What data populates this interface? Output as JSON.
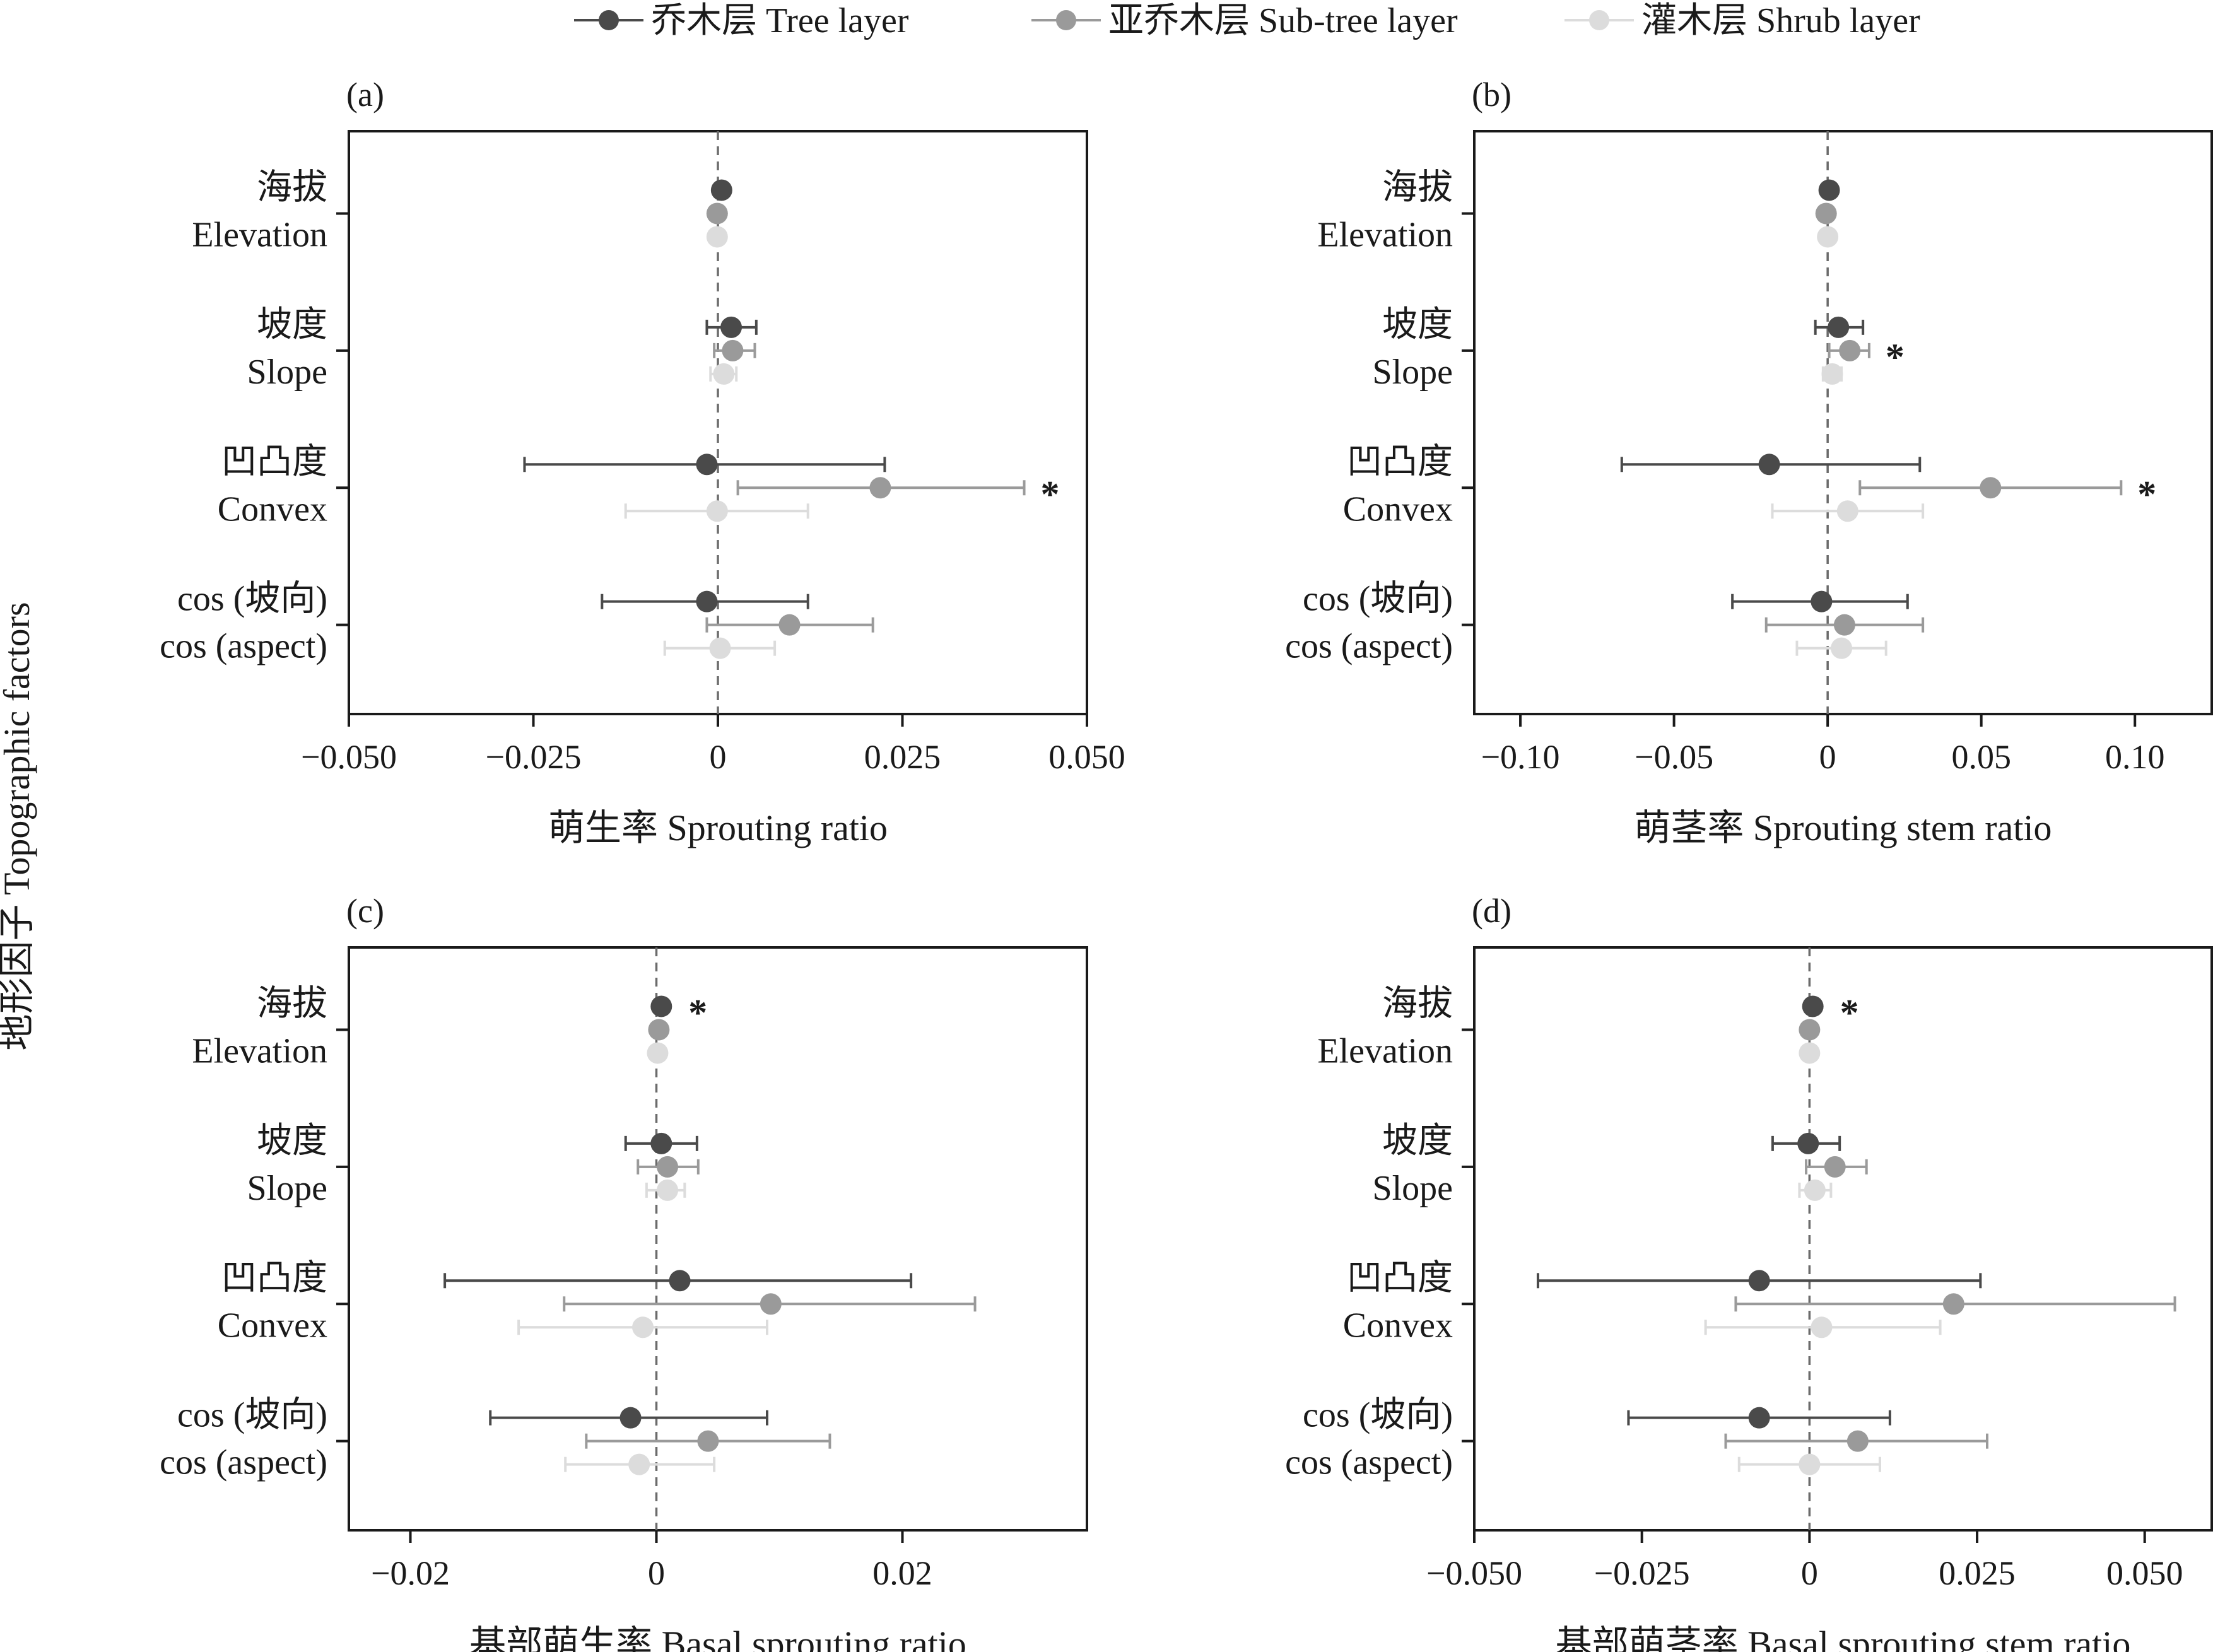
{
  "legend": [
    {
      "label": "乔木层 Tree layer",
      "color": "#4a4a4a"
    },
    {
      "label": "亚乔木层 Sub-tree layer",
      "color": "#9a9a9a"
    },
    {
      "label": "灌木层 Shrub layer",
      "color": "#dcdcdc"
    }
  ],
  "y_axis_label": "地形因子 Topographic factors",
  "categories": [
    {
      "cn": "海拔",
      "en": "Elevation"
    },
    {
      "cn": "坡度",
      "en": "Slope"
    },
    {
      "cn": "凹凸度",
      "en": "Convex"
    },
    {
      "cn": "cos (坡向)",
      "en": "cos (aspect)"
    }
  ],
  "chart_data": [
    {
      "type": "scatter",
      "panel": "(a)",
      "xlabel": "萌生率 Sprouting ratio",
      "xlim": [
        -0.05,
        0.05
      ],
      "xticks": [
        -0.05,
        -0.025,
        0,
        0.025,
        0.05
      ],
      "xtick_labels": [
        "−0.050",
        "−0.025",
        "0",
        "0.025",
        "0.050"
      ],
      "series": [
        {
          "name": "乔木层 Tree layer",
          "color": "#4a4a4a",
          "values": [
            0.0005,
            0.0018,
            -0.0015,
            -0.0015
          ],
          "lower": [
            0.0005,
            -0.0015,
            -0.0262,
            -0.0157
          ],
          "upper": [
            0.0005,
            0.0052,
            0.0226,
            0.0122
          ],
          "significant": [
            false,
            false,
            false,
            false
          ]
        },
        {
          "name": "亚乔木层 Sub-tree layer",
          "color": "#9a9a9a",
          "values": [
            -0.0001,
            0.002,
            0.022,
            0.0097
          ],
          "lower": [
            -0.0001,
            -0.0005,
            0.0027,
            -0.0015
          ],
          "upper": [
            -0.0001,
            0.005,
            0.0415,
            0.021
          ],
          "significant": [
            false,
            false,
            true,
            false
          ]
        },
        {
          "name": "灌木层 Shrub layer",
          "color": "#dcdcdc",
          "values": [
            -0.0001,
            0.0008,
            -0.0001,
            0.0003
          ],
          "lower": [
            -0.0001,
            -0.001,
            -0.0125,
            -0.0072
          ],
          "upper": [
            -0.0001,
            0.0025,
            0.0122,
            0.0077
          ],
          "significant": [
            false,
            false,
            false,
            false
          ]
        }
      ]
    },
    {
      "type": "scatter",
      "panel": "(b)",
      "xlabel": "萌茎率 Sprouting stem ratio",
      "xlim": [
        -0.115,
        0.125
      ],
      "xticks": [
        -0.1,
        -0.05,
        0,
        0.05,
        0.1
      ],
      "xtick_labels": [
        "−0.10",
        "−0.05",
        "0",
        "0.05",
        "0.10"
      ],
      "series": [
        {
          "name": "乔木层 Tree layer",
          "color": "#4a4a4a",
          "values": [
            0.0005,
            0.0035,
            -0.019,
            -0.002
          ],
          "lower": [
            0.0005,
            -0.004,
            -0.067,
            -0.031
          ],
          "upper": [
            0.0005,
            0.0115,
            0.03,
            0.026
          ],
          "significant": [
            false,
            false,
            false,
            false
          ]
        },
        {
          "name": "亚乔木层 Sub-tree layer",
          "color": "#9a9a9a",
          "values": [
            -0.0005,
            0.0072,
            0.053,
            0.0055
          ],
          "lower": [
            -0.0005,
            0.0005,
            0.0105,
            -0.02
          ],
          "upper": [
            -0.0005,
            0.0135,
            0.0955,
            0.031
          ],
          "significant": [
            false,
            true,
            true,
            false
          ]
        },
        {
          "name": "灌木层 Shrub layer",
          "color": "#dcdcdc",
          "values": [
            0.0,
            0.0015,
            0.0065,
            0.0045
          ],
          "lower": [
            0.0,
            -0.0015,
            -0.018,
            -0.01
          ],
          "upper": [
            0.0,
            0.0045,
            0.031,
            0.019
          ],
          "significant": [
            false,
            false,
            false,
            false
          ]
        }
      ]
    },
    {
      "type": "scatter",
      "panel": "(c)",
      "xlabel": "基部萌生率 Basal sprouting ratio",
      "xlim": [
        -0.025,
        0.035
      ],
      "xticks": [
        -0.02,
        0,
        0.02
      ],
      "xtick_labels": [
        "−0.02",
        "0",
        "0.02"
      ],
      "series": [
        {
          "name": "乔木层 Tree layer",
          "color": "#4a4a4a",
          "values": [
            0.0004,
            0.0004,
            0.0019,
            -0.0021
          ],
          "lower": [
            0.0004,
            -0.0025,
            -0.0172,
            -0.0135
          ],
          "upper": [
            0.0004,
            0.0033,
            0.0207,
            0.009
          ],
          "significant": [
            true,
            false,
            false,
            false
          ]
        },
        {
          "name": "亚乔木层 Sub-tree layer",
          "color": "#9a9a9a",
          "values": [
            0.0002,
            0.0009,
            0.0093,
            0.0042
          ],
          "lower": [
            0.0002,
            -0.0015,
            -0.0075,
            -0.0057
          ],
          "upper": [
            0.0002,
            0.0034,
            0.0259,
            0.0141
          ],
          "significant": [
            false,
            false,
            false,
            false
          ]
        },
        {
          "name": "灌木层 Shrub layer",
          "color": "#dcdcdc",
          "values": [
            0.0001,
            0.0009,
            -0.0011,
            -0.0014
          ],
          "lower": [
            0.0001,
            -0.0008,
            -0.0112,
            -0.0074
          ],
          "upper": [
            0.0001,
            0.0023,
            0.009,
            0.0047
          ],
          "significant": [
            false,
            false,
            false,
            false
          ]
        }
      ]
    },
    {
      "type": "scatter",
      "panel": "(d)",
      "xlabel": "基部萌茎率 Basal sprouting stem ratio",
      "xlim": [
        -0.05,
        0.06
      ],
      "xticks": [
        -0.05,
        -0.025,
        0,
        0.025,
        0.05
      ],
      "xtick_labels": [
        "−0.050",
        "−0.025",
        "0",
        "0.025",
        "0.050"
      ],
      "series": [
        {
          "name": "乔木层 Tree layer",
          "color": "#4a4a4a",
          "values": [
            0.0005,
            -0.0002,
            -0.0075,
            -0.0075
          ],
          "lower": [
            0.0005,
            -0.0055,
            -0.0405,
            -0.027
          ],
          "upper": [
            0.0005,
            0.0045,
            0.0255,
            0.012
          ],
          "significant": [
            true,
            false,
            false,
            false
          ]
        },
        {
          "name": "亚乔木层 Sub-tree layer",
          "color": "#9a9a9a",
          "values": [
            0.0,
            0.0038,
            0.0215,
            0.0072
          ],
          "lower": [
            0.0,
            -0.0005,
            -0.011,
            -0.0125
          ],
          "upper": [
            0.0,
            0.0085,
            0.0545,
            0.0265
          ],
          "significant": [
            false,
            false,
            false,
            false
          ]
        },
        {
          "name": "灌木层 Shrub layer",
          "color": "#dcdcdc",
          "values": [
            0.0,
            0.0008,
            0.0018,
            0.0
          ],
          "lower": [
            0.0,
            -0.0015,
            -0.0155,
            -0.0105
          ],
          "upper": [
            0.0,
            0.0032,
            0.0195,
            0.0105
          ],
          "significant": [
            false,
            false,
            false,
            false
          ]
        }
      ]
    }
  ]
}
